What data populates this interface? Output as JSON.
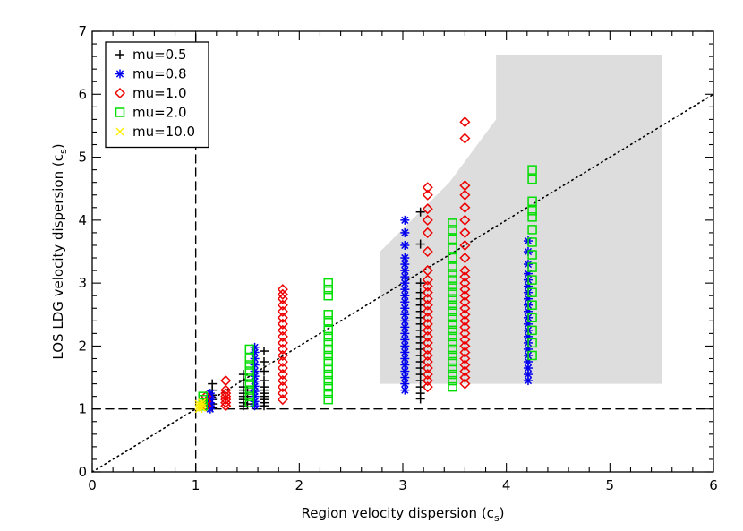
{
  "chart_data": {
    "type": "scatter",
    "xlabel": "Region velocity dispersion (c",
    "xlabel_sub": "s",
    "xlabel_close": ")",
    "ylabel": "LOS LDG velocity dispersion (c",
    "ylabel_sub": "s",
    "ylabel_close": ")",
    "xlim": [
      0,
      6
    ],
    "ylim": [
      0,
      7
    ],
    "x_ticks": [
      0,
      1,
      2,
      3,
      4,
      5,
      6
    ],
    "y_ticks": [
      0,
      1,
      2,
      3,
      4,
      5,
      6,
      7
    ],
    "x_tick_labels": [
      "0",
      "1",
      "2",
      "3",
      "4",
      "5",
      "6"
    ],
    "y_tick_labels": [
      "0",
      "1",
      "2",
      "3",
      "4",
      "5",
      "6",
      "7"
    ],
    "legend_position": "top-left",
    "shaded_region": {
      "color": "#dddddd",
      "vertices": [
        [
          2.78,
          1.4
        ],
        [
          2.78,
          3.5
        ],
        [
          3.45,
          4.6
        ],
        [
          3.9,
          5.6
        ],
        [
          3.9,
          6.63
        ],
        [
          5.5,
          6.63
        ],
        [
          5.5,
          1.4
        ]
      ]
    },
    "reference_lines": [
      {
        "name": "one-to-one",
        "style": "dotted",
        "from": [
          0,
          0
        ],
        "to": [
          6,
          6
        ]
      },
      {
        "name": "horizontal-unity",
        "style": "dashed",
        "from": [
          0,
          1
        ],
        "to": [
          6,
          1
        ]
      },
      {
        "name": "vertical-unity",
        "style": "dashed",
        "from": [
          1,
          0
        ],
        "to": [
          1,
          7
        ]
      }
    ],
    "series": [
      {
        "name": "mu=0.5",
        "marker": "plus",
        "color": "#000000",
        "columns": [
          {
            "x": 1.16,
            "y": [
              1.02,
              1.08,
              1.15,
              1.22,
              1.3,
              1.4
            ]
          },
          {
            "x": 1.46,
            "y": [
              1.05,
              1.1,
              1.15,
              1.2,
              1.25,
              1.3,
              1.35,
              1.45,
              1.55
            ]
          },
          {
            "x": 1.5,
            "y": [
              1.08,
              1.2,
              1.3
            ]
          },
          {
            "x": 1.66,
            "y": [
              1.05,
              1.1,
              1.15,
              1.2,
              1.25,
              1.3,
              1.35,
              1.45,
              1.6,
              1.75,
              1.92
            ]
          },
          {
            "x": 3.17,
            "y": [
              1.16,
              1.25,
              1.35,
              1.45,
              1.55,
              1.65,
              1.75,
              1.85,
              1.95,
              2.05,
              2.15,
              2.25,
              2.35,
              2.45,
              2.55,
              2.65,
              2.75,
              2.85,
              3.0,
              3.62,
              4.13
            ]
          }
        ]
      },
      {
        "name": "mu=0.8",
        "marker": "asterisk",
        "color": "#0000ee",
        "columns": [
          {
            "x": 1.14,
            "y": [
              1.0,
              1.05,
              1.1,
              1.15,
              1.2,
              1.25
            ]
          },
          {
            "x": 1.57,
            "y": [
              1.05,
              1.12,
              1.2,
              1.28,
              1.36,
              1.44,
              1.52,
              1.6,
              1.7,
              1.8,
              1.9,
              1.98
            ]
          },
          {
            "x": 3.02,
            "y": [
              1.3,
              1.4,
              1.5,
              1.6,
              1.7,
              1.8,
              1.9,
              2.0,
              2.1,
              2.2,
              2.3,
              2.4,
              2.5,
              2.6,
              2.7,
              2.8,
              2.9,
              3.0,
              3.1,
              3.2,
              3.3,
              3.4,
              3.6,
              3.8,
              4.0
            ]
          },
          {
            "x": 4.21,
            "y": [
              1.45,
              1.55,
              1.65,
              1.75,
              1.85,
              1.95,
              2.05,
              2.15,
              2.25,
              2.35,
              2.45,
              2.55,
              2.65,
              2.75,
              2.85,
              2.95,
              3.05,
              3.15,
              3.3,
              3.5,
              3.67
            ]
          }
        ]
      },
      {
        "name": "mu=1.0",
        "marker": "diamond",
        "color": "#ee0000",
        "columns": [
          {
            "x": 1.1,
            "y": [
              1.05,
              1.12,
              1.2
            ]
          },
          {
            "x": 1.29,
            "y": [
              1.05,
              1.1,
              1.15,
              1.2,
              1.25,
              1.3,
              1.45
            ]
          },
          {
            "x": 1.84,
            "y": [
              1.15,
              1.25,
              1.35,
              1.45,
              1.55,
              1.65,
              1.75,
              1.85,
              1.95,
              2.05,
              2.15,
              2.25,
              2.35,
              2.45,
              2.55,
              2.65,
              2.75,
              2.82,
              2.9
            ]
          },
          {
            "x": 3.24,
            "y": [
              1.35,
              1.45,
              1.55,
              1.65,
              1.75,
              1.85,
              1.95,
              2.05,
              2.15,
              2.25,
              2.35,
              2.45,
              2.55,
              2.65,
              2.75,
              2.85,
              2.95,
              3.05,
              3.2,
              3.5,
              3.8,
              4.0,
              4.18,
              4.4,
              4.52
            ]
          },
          {
            "x": 3.6,
            "y": [
              1.4,
              1.5,
              1.6,
              1.7,
              1.8,
              1.9,
              2.0,
              2.1,
              2.2,
              2.3,
              2.4,
              2.5,
              2.6,
              2.7,
              2.8,
              2.9,
              3.0,
              3.1,
              3.2,
              3.4,
              3.6,
              3.8,
              4.0,
              4.2,
              4.4,
              4.55,
              5.3,
              5.56
            ]
          }
        ]
      },
      {
        "name": "mu=2.0",
        "marker": "square",
        "color": "#00dd00",
        "columns": [
          {
            "x": 1.07,
            "y": [
              1.05,
              1.1,
              1.15,
              1.2
            ]
          },
          {
            "x": 1.52,
            "y": [
              1.1,
              1.2,
              1.3,
              1.4,
              1.5,
              1.6,
              1.7,
              1.8,
              1.95
            ]
          },
          {
            "x": 2.28,
            "y": [
              1.15,
              1.25,
              1.35,
              1.45,
              1.55,
              1.65,
              1.75,
              1.85,
              1.95,
              2.05,
              2.15,
              2.25,
              2.4,
              2.5,
              2.8,
              2.9,
              3.0
            ]
          },
          {
            "x": 3.48,
            "y": [
              1.35,
              1.45,
              1.55,
              1.65,
              1.75,
              1.85,
              1.95,
              2.05,
              2.15,
              2.25,
              2.35,
              2.45,
              2.55,
              2.65,
              2.75,
              2.85,
              2.95,
              3.05,
              3.15,
              3.25,
              3.4,
              3.55,
              3.7,
              3.85,
              3.95
            ]
          },
          {
            "x": 4.25,
            "y": [
              1.85,
              2.05,
              2.25,
              2.45,
              2.65,
              2.85,
              3.05,
              3.25,
              3.45,
              3.65,
              3.85,
              4.05,
              4.15,
              4.3,
              4.65,
              4.8
            ]
          }
        ]
      },
      {
        "name": "mu=10.0",
        "marker": "cross",
        "color": "#ffee00",
        "columns": [
          {
            "x": 1.03,
            "y": [
              1.0,
              1.04,
              1.08
            ]
          },
          {
            "x": 1.06,
            "y": [
              1.02,
              1.06,
              1.1
            ]
          }
        ]
      }
    ]
  }
}
